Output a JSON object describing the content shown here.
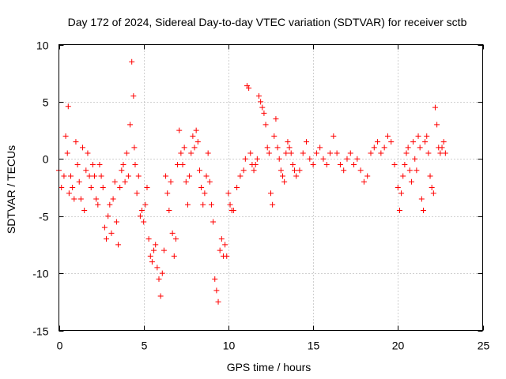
{
  "chart_data": {
    "type": "scatter",
    "title": "Day 172 of 2024, Sidereal Day-to-day VTEC variation (SDTVAR) for receiver sctb",
    "xlabel": "GPS time / hours",
    "ylabel": "SDTVAR / TECUs",
    "xlim": [
      0,
      25
    ],
    "ylim": [
      -15,
      10
    ],
    "xticks": [
      0,
      5,
      10,
      15,
      20,
      25
    ],
    "yticks": [
      -15,
      -10,
      -5,
      0,
      5,
      10
    ],
    "xtick_labels": [
      "0",
      "5",
      "10",
      "15",
      "20",
      "25"
    ],
    "ytick_labels": [
      "-15",
      "-10",
      "-5",
      "0",
      "5",
      "10"
    ],
    "grid": true,
    "marker": "+",
    "series": [
      {
        "name": "SDTVAR",
        "color": "#ff0000",
        "x": [
          0.0,
          0.15,
          0.3,
          0.4,
          0.5,
          0.55,
          0.6,
          0.7,
          0.8,
          0.9,
          1.0,
          1.1,
          1.2,
          1.3,
          1.4,
          1.5,
          1.6,
          1.7,
          1.8,
          1.9,
          2.0,
          2.1,
          2.2,
          2.3,
          2.4,
          2.5,
          2.6,
          2.7,
          2.8,
          2.9,
          3.0,
          3.1,
          3.2,
          3.3,
          3.4,
          3.5,
          3.6,
          3.7,
          3.8,
          3.9,
          4.0,
          4.1,
          4.2,
          4.3,
          4.4,
          4.45,
          4.5,
          4.6,
          4.7,
          4.8,
          4.9,
          5.0,
          5.1,
          5.2,
          5.3,
          5.4,
          5.5,
          5.6,
          5.7,
          5.8,
          5.9,
          6.0,
          6.1,
          6.2,
          6.3,
          6.4,
          6.5,
          6.6,
          6.7,
          6.8,
          6.9,
          7.0,
          7.1,
          7.2,
          7.3,
          7.4,
          7.5,
          7.6,
          7.7,
          7.8,
          7.9,
          8.0,
          8.1,
          8.2,
          8.3,
          8.4,
          8.5,
          8.6,
          8.7,
          8.8,
          8.9,
          9.0,
          9.1,
          9.2,
          9.3,
          9.4,
          9.5,
          9.6,
          9.7,
          9.8,
          9.9,
          10.0,
          10.1,
          10.2,
          10.3,
          10.5,
          10.7,
          10.9,
          11.0,
          11.1,
          11.2,
          11.3,
          11.4,
          11.5,
          11.6,
          11.7,
          11.8,
          11.9,
          12.0,
          12.1,
          12.2,
          12.3,
          12.4,
          12.5,
          12.6,
          12.7,
          12.8,
          12.9,
          13.0,
          13.1,
          13.2,
          13.3,
          13.4,
          13.5,
          13.6,
          13.7,
          13.8,
          13.9,
          14.0,
          14.2,
          14.4,
          14.6,
          14.8,
          15.0,
          15.2,
          15.4,
          15.6,
          15.8,
          16.0,
          16.2,
          16.4,
          16.6,
          16.8,
          17.0,
          17.2,
          17.4,
          17.6,
          17.8,
          18.0,
          18.2,
          18.4,
          18.6,
          18.8,
          19.0,
          19.2,
          19.4,
          19.6,
          19.8,
          20.0,
          20.1,
          20.2,
          20.3,
          20.4,
          20.5,
          20.6,
          20.7,
          20.8,
          20.9,
          21.0,
          21.1,
          21.2,
          21.3,
          21.4,
          21.5,
          21.6,
          21.7,
          21.8,
          21.9,
          22.0,
          22.1,
          22.2,
          22.3,
          22.4,
          22.5,
          22.6,
          22.7,
          22.8
        ],
        "y": [
          -1.0,
          -2.5,
          -1.5,
          2.0,
          0.5,
          4.6,
          -3.0,
          -1.5,
          -2.5,
          -3.5,
          1.5,
          -0.5,
          -2.0,
          -3.5,
          1.0,
          -4.5,
          -1.0,
          0.5,
          -1.5,
          -2.5,
          -0.5,
          -1.5,
          -3.5,
          -4.0,
          -0.5,
          -1.5,
          -2.5,
          -6.0,
          -7.0,
          -5.0,
          -4.0,
          -6.5,
          -3.5,
          -2.0,
          -5.5,
          -7.5,
          -2.5,
          -1.0,
          -0.5,
          -2.0,
          0.5,
          -1.5,
          3.0,
          8.5,
          5.5,
          1.0,
          -0.5,
          -3.0,
          -1.5,
          -5.0,
          -4.5,
          -5.5,
          -4.0,
          -2.5,
          -7.0,
          -8.5,
          -9.0,
          -8.0,
          -7.5,
          -9.5,
          -10.5,
          -12.0,
          -10.0,
          -8.0,
          -1.5,
          -3.0,
          -4.5,
          -2.0,
          -6.5,
          -8.5,
          -7.0,
          -0.5,
          2.5,
          0.5,
          -0.5,
          1.0,
          -2.0,
          -4.0,
          -1.5,
          0.5,
          2.0,
          1.0,
          2.5,
          1.5,
          -1.0,
          -2.5,
          -4.0,
          -3.0,
          -1.5,
          0.5,
          -2.0,
          -4.0,
          -5.5,
          -10.5,
          -11.5,
          -12.5,
          -8.0,
          -7.0,
          -8.5,
          -7.5,
          -8.5,
          -3.0,
          -4.0,
          -4.5,
          -4.5,
          -2.5,
          -1.5,
          -1.0,
          0.0,
          6.4,
          6.2,
          0.5,
          -0.5,
          -1.0,
          -0.5,
          0.0,
          5.5,
          5.0,
          4.5,
          4.0,
          3.0,
          1.0,
          0.5,
          -3.0,
          -4.0,
          2.0,
          3.5,
          1.0,
          0.0,
          -1.0,
          -1.5,
          -2.0,
          0.5,
          1.5,
          1.0,
          0.5,
          -0.5,
          -1.0,
          -1.5,
          -1.0,
          0.5,
          1.5,
          0.0,
          -0.5,
          0.5,
          1.0,
          0.0,
          -0.5,
          0.5,
          2.0,
          0.5,
          -0.5,
          -1.0,
          0.0,
          0.5,
          -0.5,
          0.0,
          -1.0,
          -2.0,
          -1.5,
          0.5,
          1.0,
          1.5,
          0.5,
          1.0,
          2.0,
          1.5,
          -0.5,
          -2.5,
          -4.5,
          -3.0,
          -1.5,
          -0.5,
          0.5,
          1.0,
          -1.0,
          -2.0,
          1.5,
          0.0,
          -1.0,
          2.0,
          1.0,
          -3.5,
          -4.5,
          1.5,
          2.0,
          0.5,
          -1.5,
          -2.5,
          -3.0,
          4.5,
          3.0,
          1.0,
          0.5,
          1.0,
          1.5,
          0.5
        ]
      }
    ]
  }
}
